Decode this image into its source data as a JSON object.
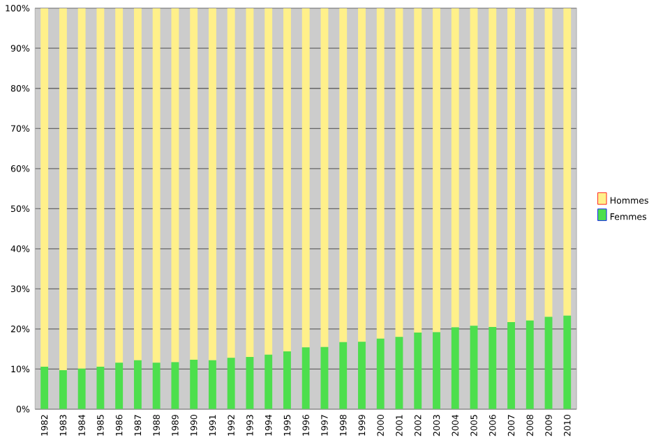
{
  "chart_data": {
    "type": "bar",
    "stacked": true,
    "categories": [
      "1982",
      "1983",
      "1984",
      "1985",
      "1986",
      "1987",
      "1988",
      "1989",
      "1990",
      "1991",
      "1992",
      "1993",
      "1994",
      "1995",
      "1996",
      "1997",
      "1998",
      "1999",
      "2000",
      "2001",
      "2002",
      "2003",
      "2004",
      "2005",
      "2006",
      "2007",
      "2008",
      "2009",
      "2010"
    ],
    "series": [
      {
        "name": "Femmes",
        "color": "#4ddf4d",
        "values": [
          10.6,
          9.7,
          10.1,
          10.6,
          11.6,
          12.2,
          11.6,
          11.7,
          12.3,
          12.2,
          12.8,
          13,
          13.6,
          14.4,
          15.4,
          15.5,
          16.7,
          16.8,
          17.6,
          18,
          19.1,
          19.2,
          20.4,
          20.8,
          20.5,
          21.7,
          22.1,
          23,
          23.3
        ]
      },
      {
        "name": "Hommes",
        "color": "#fff08a",
        "values": [
          89.4,
          90.3,
          89.9,
          89.4,
          88.4,
          87.8,
          88.4,
          88.3,
          87.7,
          87.8,
          87.2,
          87,
          86.4,
          85.6,
          84.6,
          84.5,
          83.3,
          83.2,
          82.4,
          82,
          80.9,
          80.8,
          79.6,
          79.2,
          79.5,
          78.3,
          77.9,
          77,
          76.7
        ]
      }
    ],
    "ylim": [
      0,
      100
    ],
    "yticks": [
      {
        "value": 0,
        "label": "0%"
      },
      {
        "value": 10,
        "label": "10%"
      },
      {
        "value": 20,
        "label": "20%"
      },
      {
        "value": 30,
        "label": "30%"
      },
      {
        "value": 40,
        "label": "40%"
      },
      {
        "value": 50,
        "label": "50%"
      },
      {
        "value": 60,
        "label": "60%"
      },
      {
        "value": 70,
        "label": "70%"
      },
      {
        "value": 80,
        "label": "80%"
      },
      {
        "value": 90,
        "label": "90%"
      },
      {
        "value": 100,
        "label": "100%"
      }
    ],
    "grid": "y",
    "legend": "right"
  }
}
